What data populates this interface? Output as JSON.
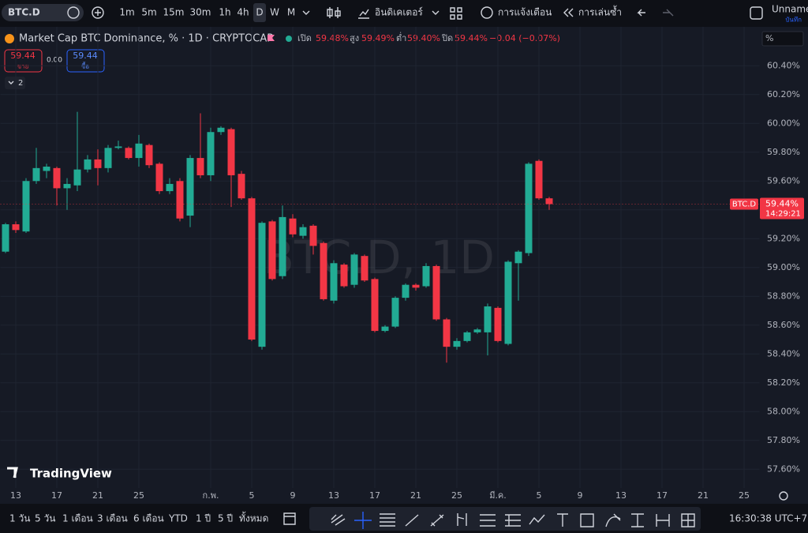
{
  "toolbar": {
    "symbol": "BTC.D",
    "intervals": [
      "1m",
      "5m",
      "15m",
      "30m",
      "1h",
      "4h",
      "D",
      "W",
      "M"
    ],
    "indicators": "อินดิเคเตอร์",
    "alerts": "การแจ้งเตือน",
    "replay": "การเล่นซ้ำ",
    "account": "Unname",
    "save": "บันทึก"
  },
  "legend": {
    "title": "Market Cap BTC Dominance, % · 1D · CRYPTOCAP",
    "open_label": "เปิด",
    "open": "59.48%",
    "high_label": "สูง",
    "high": "59.49%",
    "low_label": "ต่ำ",
    "low": "59.40%",
    "close_label": "ปิด",
    "close": "59.44%",
    "change": "−0.04 (−0.07%)"
  },
  "trade": {
    "sell_price": "59.44",
    "sell": "ขาย",
    "spread": "0.00",
    "buy_price": "59.44",
    "buy": "ซื้อ"
  },
  "indicator_count": "2",
  "brand": "TradingView",
  "range_buttons": [
    "1 วัน",
    "5 วัน",
    "1 เดือน",
    "3 เดือน",
    "6 เดือน",
    "YTD",
    "1 ปี",
    "5 ปี",
    "ทั้งหมด"
  ],
  "clock": "16:30:38 UTC+7",
  "chart_data": {
    "type": "candlestick",
    "watermark": "BTC.D, 1D",
    "axis_unit": "%",
    "up_color": "#22ab94",
    "down_color": "#f23645",
    "categories": [
      null,
      "13",
      null,
      null,
      null,
      "17",
      null,
      null,
      null,
      "21",
      null,
      null,
      null,
      "25",
      null,
      null,
      null,
      null,
      null,
      null,
      "ก.พ.",
      null,
      null,
      null,
      "5",
      null,
      null,
      null,
      "9",
      null,
      null,
      null,
      "13",
      null,
      null,
      null,
      "17",
      null,
      null,
      null,
      "21",
      null,
      null,
      null,
      "25",
      null,
      null,
      null,
      "มี.ค.",
      null,
      null,
      null,
      "5",
      null,
      null,
      null,
      "9",
      null,
      null,
      null,
      "13",
      null,
      null,
      null,
      "17",
      null,
      null,
      null,
      "21",
      null,
      null,
      null,
      "25",
      null
    ],
    "open": [
      59.11,
      59.3,
      59.25,
      59.6,
      59.67,
      59.69,
      59.55,
      59.57,
      59.68,
      59.75,
      59.69,
      59.83,
      59.83,
      59.76,
      59.85,
      59.72,
      59.53,
      59.6,
      59.36,
      59.76,
      59.64,
      59.94,
      59.96,
      59.65,
      59.48,
      58.45,
      59.32,
      58.94,
      59.34,
      59.22,
      59.29,
      59.17,
      58.77,
      59.02,
      58.88,
      59.08,
      58.92,
      58.56,
      58.59,
      58.79,
      58.88,
      58.87,
      59.01,
      58.64,
      58.45,
      58.49,
      58.55,
      58.55,
      58.72,
      58.47,
      59.03,
      59.1,
      59.74,
      59.48,
      null,
      null,
      null,
      null,
      null,
      null,
      null,
      null,
      null,
      null,
      null,
      null,
      null,
      null,
      null,
      null,
      null,
      null,
      null,
      null
    ],
    "high": [
      59.31,
      59.32,
      59.62,
      59.83,
      59.72,
      59.7,
      59.62,
      60.08,
      59.78,
      59.82,
      59.85,
      59.88,
      59.84,
      59.92,
      59.86,
      59.73,
      59.62,
      59.62,
      59.78,
      60.07,
      59.97,
      59.98,
      59.97,
      59.67,
      59.49,
      59.32,
      59.33,
      59.43,
      59.37,
      59.3,
      59.3,
      59.18,
      59.05,
      59.03,
      59.1,
      59.09,
      58.93,
      58.6,
      58.8,
      58.89,
      58.89,
      59.03,
      59.02,
      58.65,
      58.51,
      58.56,
      58.58,
      58.75,
      58.73,
      59.05,
      59.12,
      59.73,
      59.75,
      59.49,
      null,
      null,
      null,
      null,
      null,
      null,
      null,
      null,
      null,
      null,
      null,
      null,
      null,
      null,
      null,
      null,
      null,
      null,
      null,
      null
    ],
    "low": [
      59.1,
      59.24,
      59.24,
      59.58,
      59.62,
      59.43,
      59.4,
      59.53,
      59.66,
      59.57,
      59.66,
      59.82,
      59.75,
      59.7,
      59.69,
      59.51,
      59.51,
      59.32,
      59.28,
      59.62,
      59.6,
      59.92,
      59.42,
      59.47,
      58.49,
      58.43,
      58.91,
      58.92,
      59.21,
      59.2,
      59.09,
      58.77,
      58.75,
      58.86,
      58.86,
      58.9,
      58.55,
      58.55,
      58.58,
      58.77,
      58.84,
      58.86,
      58.63,
      58.34,
      58.43,
      58.48,
      58.54,
      58.39,
      58.48,
      58.46,
      58.77,
      59.08,
      59.47,
      59.4,
      null,
      null,
      null,
      null,
      null,
      null,
      null,
      null,
      null,
      null,
      null,
      null,
      null,
      null,
      null,
      null,
      null,
      null,
      null,
      null
    ],
    "close": [
      59.3,
      59.26,
      59.6,
      59.69,
      59.7,
      59.55,
      59.58,
      59.68,
      59.75,
      59.69,
      59.83,
      59.84,
      59.76,
      59.86,
      59.71,
      59.53,
      59.58,
      59.34,
      59.76,
      59.64,
      59.94,
      59.97,
      59.64,
      59.48,
      58.5,
      59.31,
      58.92,
      59.35,
      59.23,
      59.28,
      59.15,
      58.78,
      59.03,
      58.87,
      59.09,
      58.91,
      58.56,
      58.59,
      58.79,
      58.88,
      58.86,
      59.01,
      58.64,
      58.45,
      58.49,
      58.55,
      58.57,
      58.73,
      58.49,
      59.04,
      59.11,
      59.72,
      59.48,
      59.44,
      null,
      null,
      null,
      null,
      null,
      null,
      null,
      null,
      null,
      null,
      null,
      null,
      null,
      null,
      null,
      null,
      null,
      null,
      null,
      null
    ],
    "ylim": [
      57.47,
      60.67
    ],
    "yticks": [
      {
        "value": 60.4,
        "label": "60.40%"
      },
      {
        "value": 60.2,
        "label": "60.20%"
      },
      {
        "value": 60.0,
        "label": "60.00%"
      },
      {
        "value": 59.8,
        "label": "59.80%"
      },
      {
        "value": 59.6,
        "label": "59.60%"
      },
      {
        "value": 59.4,
        "label": "59.40%"
      },
      {
        "value": 59.2,
        "label": "59.20%"
      },
      {
        "value": 59.0,
        "label": "59.00%"
      },
      {
        "value": 58.8,
        "label": "58.80%"
      },
      {
        "value": 58.6,
        "label": "58.60%"
      },
      {
        "value": 58.4,
        "label": "58.40%"
      },
      {
        "value": 58.2,
        "label": "58.20%"
      },
      {
        "value": 58.0,
        "label": "58.00%"
      },
      {
        "value": 57.8,
        "label": "57.80%"
      },
      {
        "value": 57.6,
        "label": "57.60%"
      }
    ],
    "grid": true,
    "last_price": {
      "symbol": "BTC.D",
      "label": "59.44%",
      "countdown": "14:29:21"
    }
  }
}
